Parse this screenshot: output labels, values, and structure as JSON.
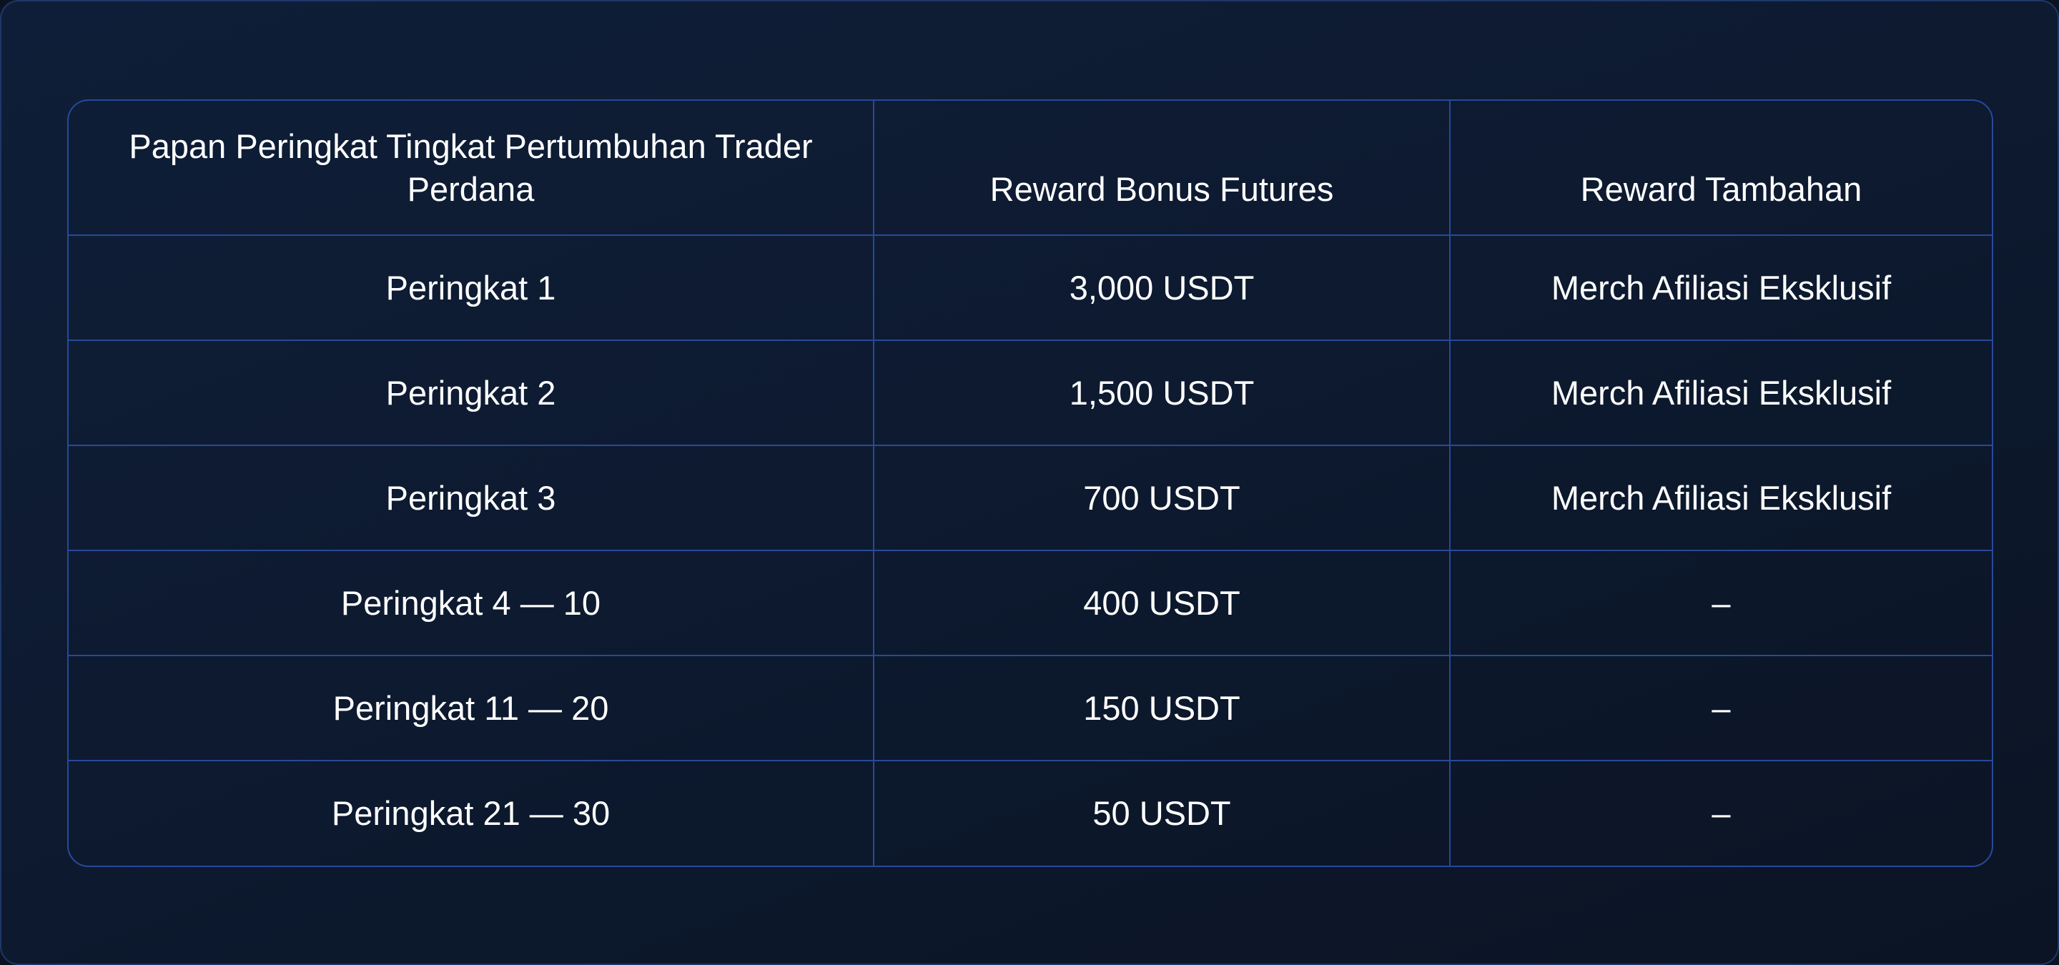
{
  "table": {
    "headers": [
      "Papan Peringkat Tingkat Pertumbuhan Trader Perdana",
      "Reward Bonus Futures",
      "Reward Tambahan"
    ],
    "rows": [
      [
        "Peringkat 1",
        "3,000 USDT",
        "Merch Afiliasi Eksklusif"
      ],
      [
        "Peringkat 2",
        "1,500 USDT",
        "Merch Afiliasi Eksklusif"
      ],
      [
        "Peringkat 3",
        "700 USDT",
        "Merch Afiliasi Eksklusif"
      ],
      [
        "Peringkat 4 — 10",
        "400 USDT",
        "–"
      ],
      [
        "Peringkat 11 — 20",
        "150 USDT",
        "–"
      ],
      [
        "Peringkat 21 — 30",
        "50 USDT",
        "–"
      ]
    ]
  },
  "colors": {
    "border": "#28499a",
    "background": "#0d1a30",
    "text": "#ffffff"
  }
}
